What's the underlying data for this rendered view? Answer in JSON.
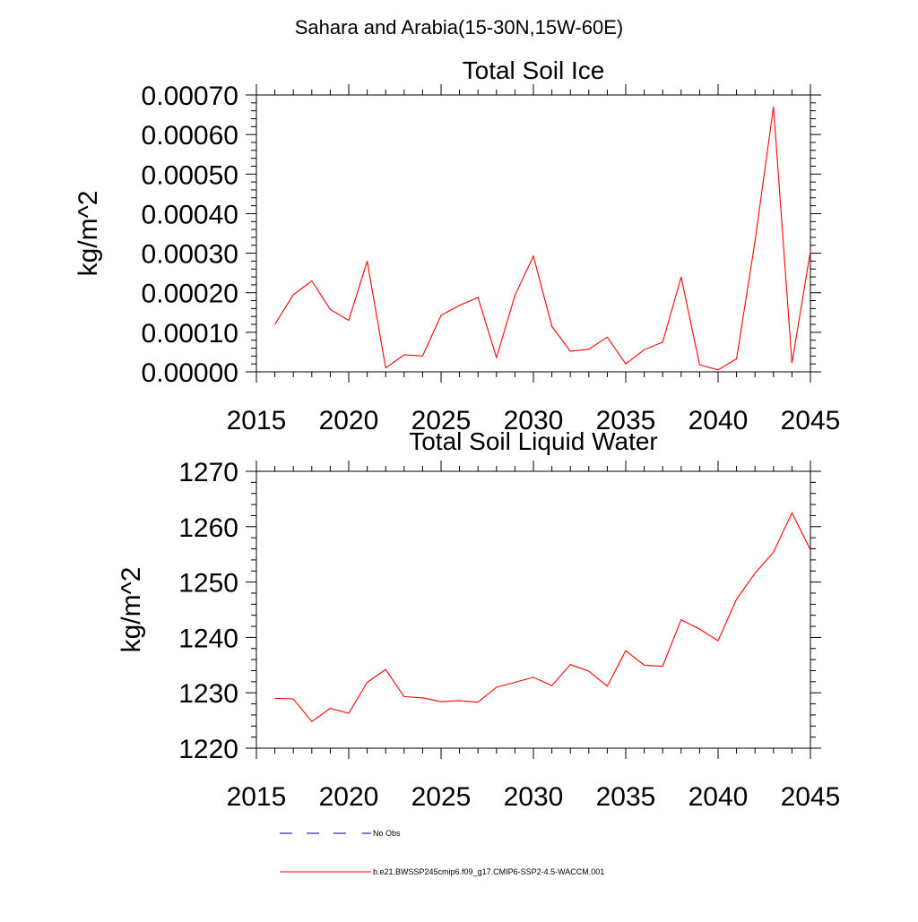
{
  "figure": {
    "title": "Sahara and Arabia(15-30N,15W-60E)"
  },
  "legend": {
    "items": [
      {
        "label": "No Obs",
        "style": "dashed",
        "color": "#000080"
      },
      {
        "label": "b.e21.BWSSP245cmip6.f09_g17.CMIP6-SSP2-4.5-WACCM.001",
        "style": "solid",
        "color": "#ff0000"
      }
    ]
  },
  "chart_data": [
    {
      "type": "line",
      "title": "Total Soil Ice",
      "xlabel": "",
      "ylabel": "kg/m^2",
      "xlim": [
        2015,
        2045
      ],
      "ylim": [
        0,
        0.0007
      ],
      "xticks": [
        2015,
        2020,
        2025,
        2030,
        2035,
        2040,
        2045
      ],
      "xtick_labels": [
        "2015",
        "2020",
        "2025",
        "2030",
        "2035",
        "2040",
        "2045"
      ],
      "yticks": [
        0,
        0.0001,
        0.0002,
        0.0003,
        0.0004,
        0.0005,
        0.0006,
        0.0007
      ],
      "ytick_labels": [
        "0.00000",
        "0.00010",
        "0.00020",
        "0.00030",
        "0.00040",
        "0.00050",
        "0.00060",
        "0.00070"
      ],
      "grid": false,
      "series": [
        {
          "color": "#ff0000",
          "x": [
            2016,
            2017,
            2018,
            2019,
            2020,
            2021,
            2022,
            2023,
            2024,
            2025,
            2026,
            2027,
            2028,
            2029,
            2030,
            2031,
            2032,
            2033,
            2034,
            2035,
            2036,
            2037,
            2038,
            2039,
            2040,
            2041,
            2042,
            2043,
            2044,
            2045
          ],
          "values": [
            0.00012,
            0.000195,
            0.00023,
            0.000158,
            0.00013,
            0.00028,
            1e-05,
            4.3e-05,
            4e-05,
            0.000143,
            0.000168,
            0.000188,
            3.6e-05,
            0.000193,
            0.000293,
            0.000115,
            5.2e-05,
            5.7e-05,
            8.8e-05,
            2e-05,
            5.6e-05,
            7.5e-05,
            0.00024,
            1.8e-05,
            5e-06,
            3.3e-05,
            0.00033,
            0.00067,
            2.2e-05,
            0.000305
          ]
        }
      ]
    },
    {
      "type": "line",
      "title": "Total Soil Liquid Water",
      "xlabel": "",
      "ylabel": "kg/m^2",
      "xlim": [
        2015,
        2045
      ],
      "ylim": [
        1220,
        1270
      ],
      "xticks": [
        2015,
        2020,
        2025,
        2030,
        2035,
        2040,
        2045
      ],
      "xtick_labels": [
        "2015",
        "2020",
        "2025",
        "2030",
        "2035",
        "2040",
        "2045"
      ],
      "yticks": [
        1220,
        1230,
        1240,
        1250,
        1260,
        1270
      ],
      "ytick_labels": [
        "1220",
        "1230",
        "1240",
        "1250",
        "1260",
        "1270"
      ],
      "grid": false,
      "series": [
        {
          "color": "#ff0000",
          "x": [
            2016,
            2017,
            2018,
            2019,
            2020,
            2021,
            2022,
            2023,
            2024,
            2025,
            2026,
            2027,
            2028,
            2029,
            2030,
            2031,
            2032,
            2033,
            2034,
            2035,
            2036,
            2037,
            2038,
            2039,
            2040,
            2041,
            2042,
            2043,
            2044,
            2045
          ],
          "values": [
            1229.0,
            1228.9,
            1224.8,
            1227.2,
            1226.3,
            1231.9,
            1234.2,
            1229.3,
            1229.1,
            1228.4,
            1228.6,
            1228.3,
            1231.0,
            1231.9,
            1232.8,
            1231.3,
            1235.1,
            1233.9,
            1231.2,
            1237.6,
            1235.0,
            1234.8,
            1243.2,
            1241.5,
            1239.4,
            1246.9,
            1251.6,
            1255.4,
            1262.5,
            1255.8
          ]
        }
      ]
    }
  ]
}
